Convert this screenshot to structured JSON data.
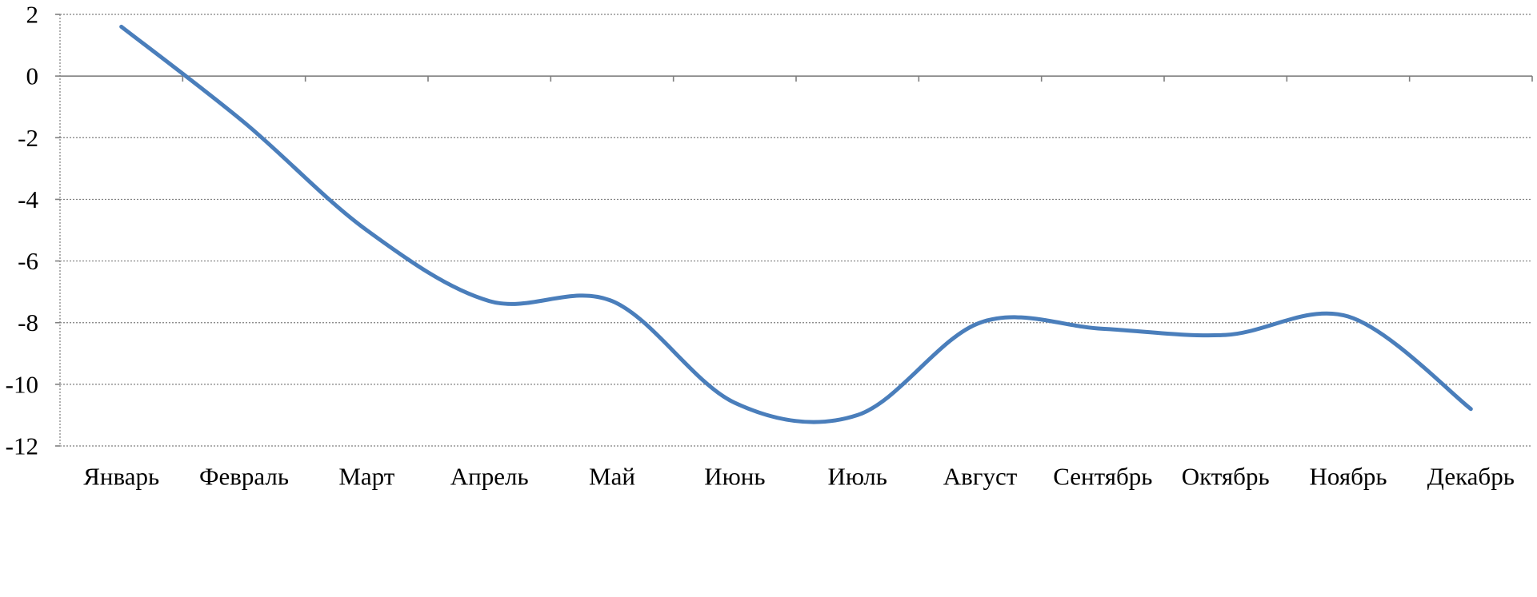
{
  "chart_data": {
    "type": "line",
    "title": "",
    "xlabel": "",
    "ylabel": "",
    "categories": [
      "Январь",
      "Февраль",
      "Март",
      "Апрель",
      "Май",
      "Июнь",
      "Июль",
      "Август",
      "Сентябрь",
      "Октябрь",
      "Ноябрь",
      "Декабрь"
    ],
    "series": [
      {
        "values": [
          1.6,
          -1.5,
          -5.0,
          -7.3,
          -7.3,
          -10.6,
          -11.0,
          -8.0,
          -8.2,
          -8.4,
          -7.8,
          -10.8
        ]
      }
    ],
    "ylim": [
      -12,
      2
    ],
    "yticks": [
      "2",
      "0",
      "-2",
      "-4",
      "-6",
      "-8",
      "-10",
      "-12"
    ],
    "smooth": true,
    "grid": true,
    "legend": "none",
    "colors": {
      "series": "#4a7ebb",
      "grid": "#7f7f7f",
      "axis": "#7f7f7f"
    }
  }
}
